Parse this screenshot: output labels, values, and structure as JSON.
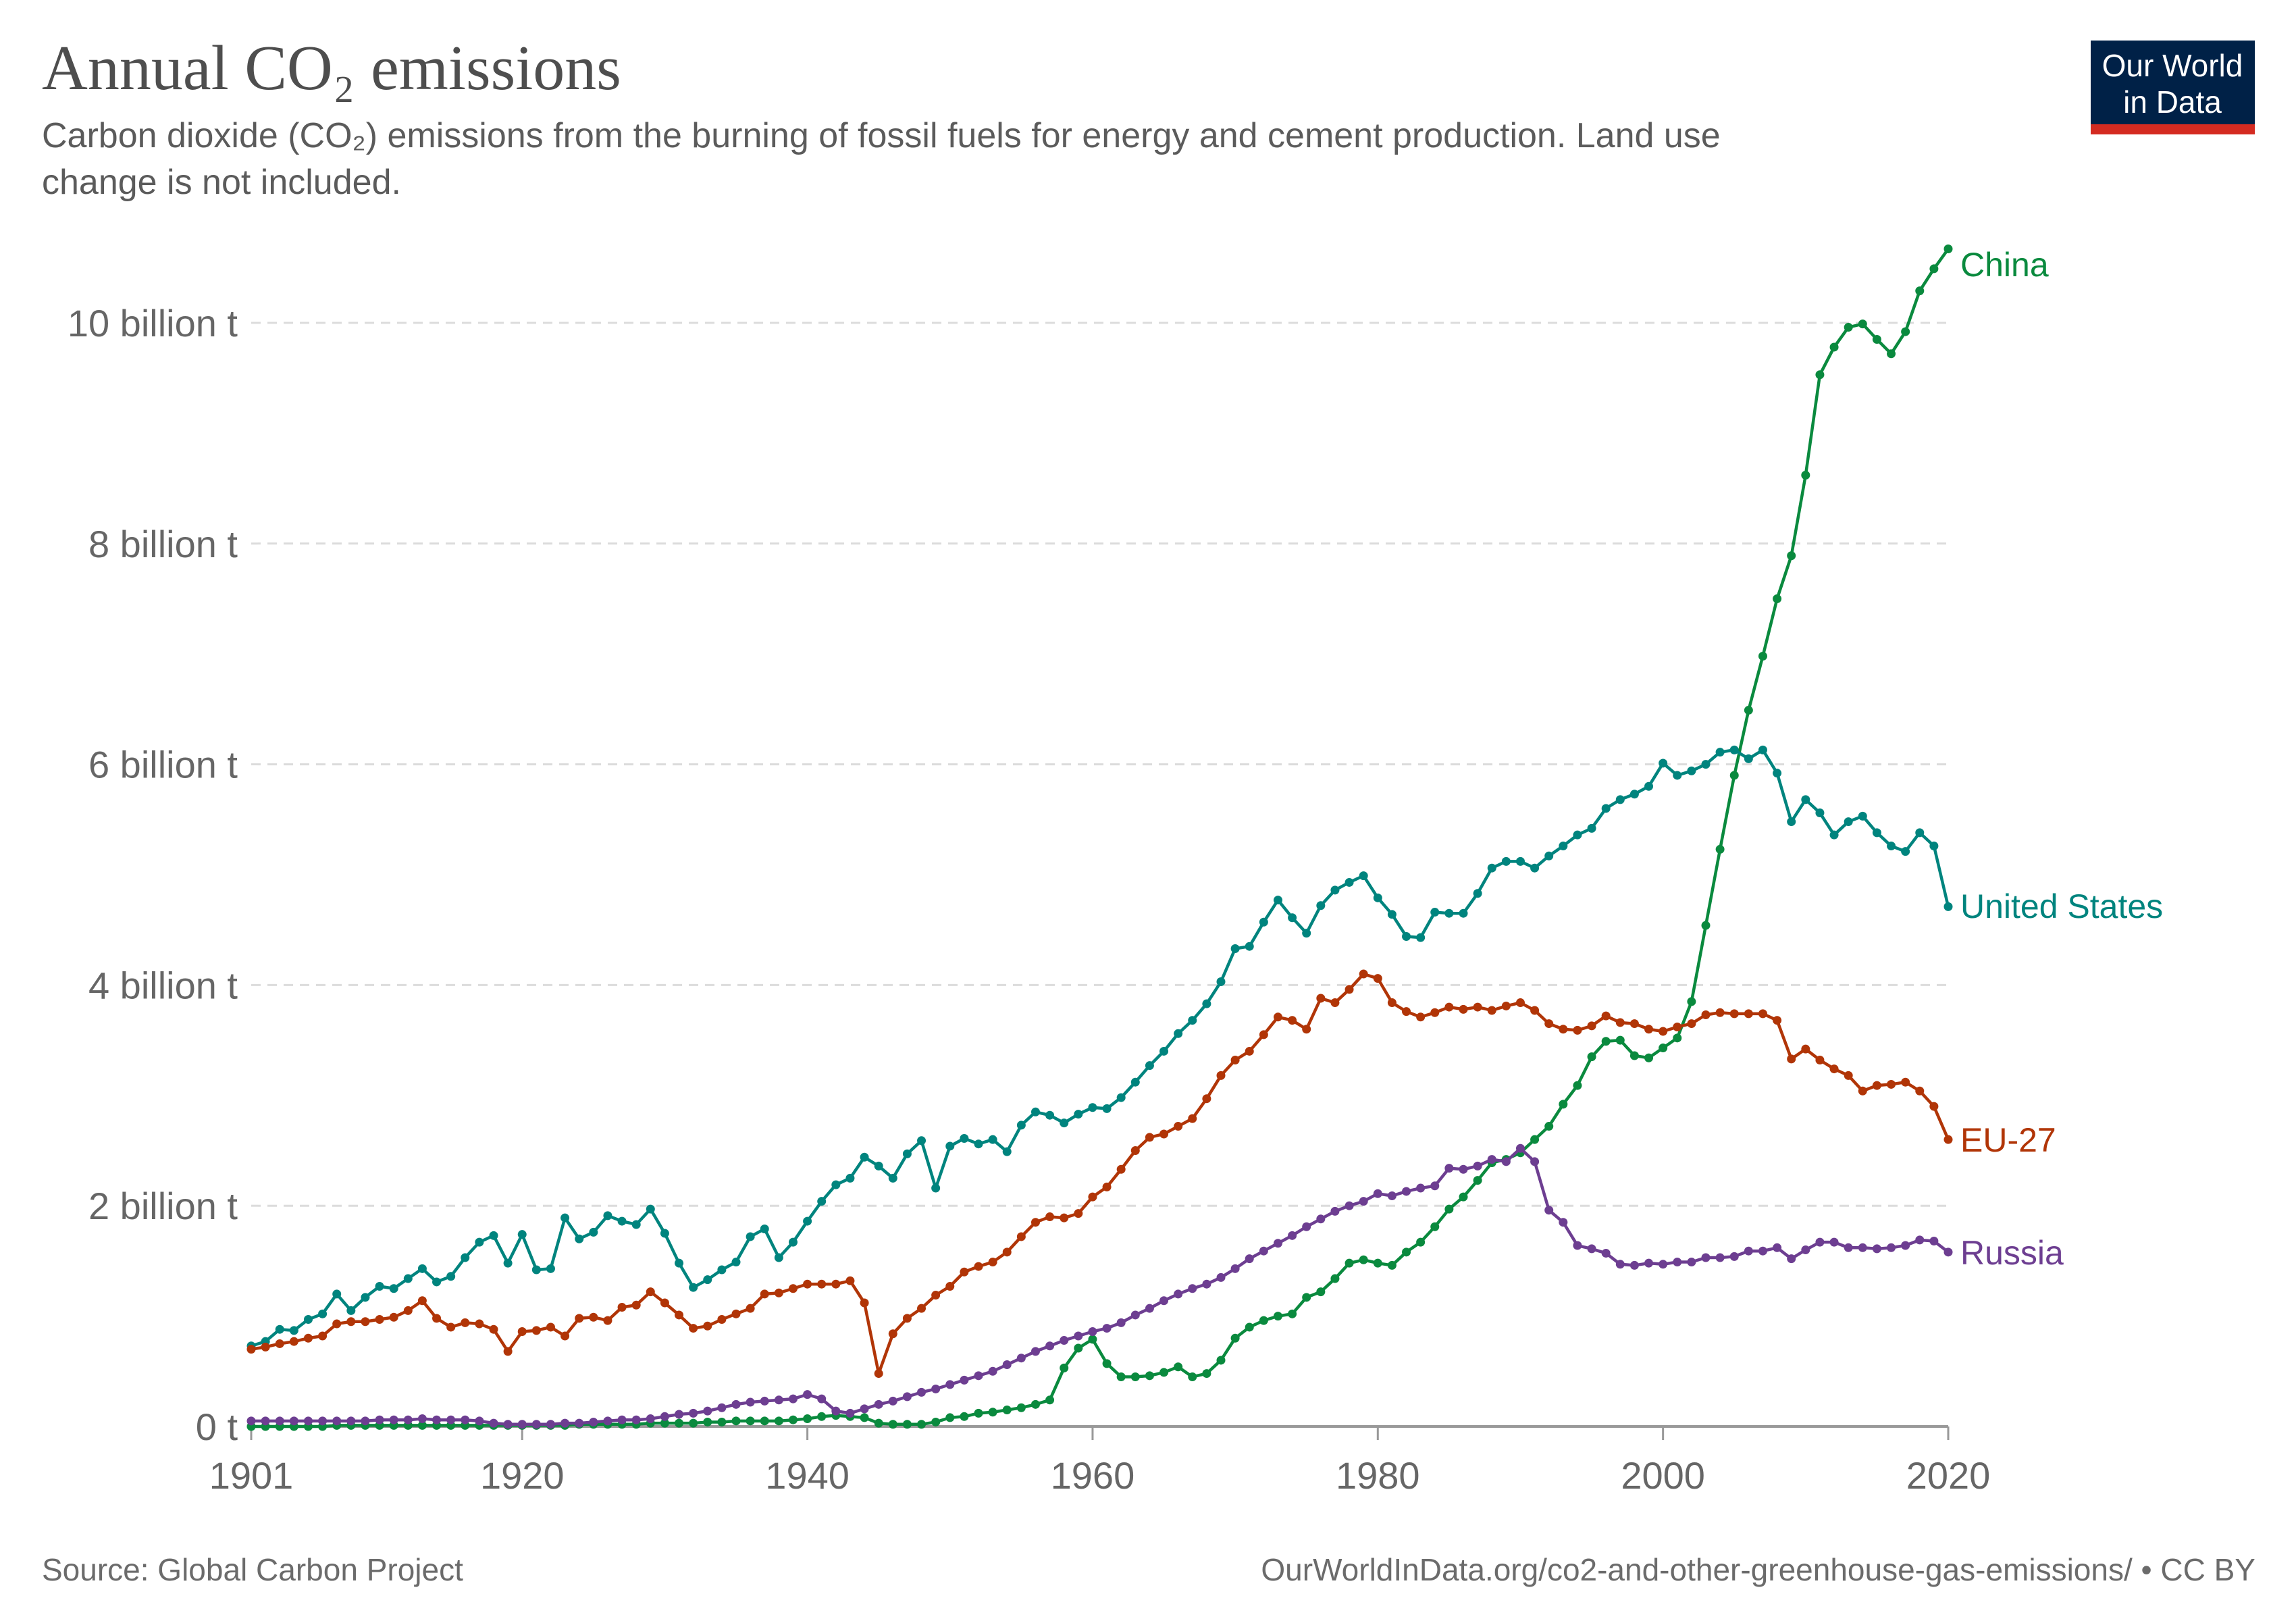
{
  "header": {
    "title": "Annual CO₂ emissions",
    "subtitle_line1": "Carbon dioxide (CO₂) emissions from the burning of fossil fuels for energy and cement production. Land use",
    "subtitle_line2": "change is not included.",
    "logo_line1": "Our World",
    "logo_line2": "in Data",
    "logo_colors": {
      "background": "#002147",
      "band": "#d42b21"
    }
  },
  "footer": {
    "source": "Source: Global Carbon Project",
    "url": "OurWorldInData.org/co2-and-other-greenhouse-gas-emissions/ • CC BY"
  },
  "chart_data": {
    "type": "line",
    "title": "Annual CO₂ emissions",
    "xlabel": "",
    "ylabel": "",
    "x_start": 1901,
    "x_end": 2020,
    "xlim": [
      1901,
      2020
    ],
    "ylim": [
      0,
      10
    ],
    "x_ticks": [
      "1901",
      "1920",
      "1940",
      "1960",
      "1980",
      "2000",
      "2020"
    ],
    "y_ticks": [
      {
        "value": 0,
        "label": "0 t"
      },
      {
        "value": 2,
        "label": "2 billion t"
      },
      {
        "value": 4,
        "label": "4 billion t"
      },
      {
        "value": 6,
        "label": "6 billion t"
      },
      {
        "value": 8,
        "label": "8 billion t"
      },
      {
        "value": 10,
        "label": "10 billion t"
      }
    ],
    "unit": "billion t",
    "grid": "horizontal dashed",
    "legend": "inline labels at line ends (right)",
    "markers": true,
    "series": [
      {
        "name": "China",
        "color": "#0a8a3e",
        "values": [
          0.0,
          0.0,
          0.0,
          0.0,
          0.0,
          0.0,
          0.01,
          0.01,
          0.01,
          0.01,
          0.01,
          0.01,
          0.01,
          0.01,
          0.01,
          0.01,
          0.01,
          0.01,
          0.01,
          0.01,
          0.01,
          0.01,
          0.01,
          0.02,
          0.02,
          0.02,
          0.02,
          0.02,
          0.03,
          0.03,
          0.03,
          0.03,
          0.04,
          0.04,
          0.05,
          0.05,
          0.05,
          0.05,
          0.06,
          0.07,
          0.09,
          0.1,
          0.09,
          0.08,
          0.03,
          0.02,
          0.02,
          0.02,
          0.04,
          0.08,
          0.09,
          0.12,
          0.13,
          0.15,
          0.17,
          0.2,
          0.24,
          0.53,
          0.71,
          0.79,
          0.57,
          0.45,
          0.45,
          0.46,
          0.49,
          0.54,
          0.45,
          0.48,
          0.6,
          0.8,
          0.9,
          0.96,
          1.0,
          1.02,
          1.17,
          1.22,
          1.34,
          1.48,
          1.51,
          1.48,
          1.46,
          1.58,
          1.67,
          1.81,
          1.97,
          2.08,
          2.23,
          2.39,
          2.42,
          2.48,
          2.6,
          2.72,
          2.92,
          3.09,
          3.35,
          3.49,
          3.5,
          3.36,
          3.34,
          3.43,
          3.52,
          3.85,
          4.54,
          5.23,
          5.9,
          6.49,
          6.98,
          7.5,
          7.89,
          8.62,
          9.53,
          9.78,
          9.96,
          9.99,
          9.85,
          9.72,
          9.92,
          10.29,
          10.49,
          10.67
        ]
      },
      {
        "name": "United States",
        "color": "#00847e",
        "values": [
          0.73,
          0.77,
          0.88,
          0.87,
          0.97,
          1.02,
          1.2,
          1.05,
          1.17,
          1.27,
          1.25,
          1.34,
          1.43,
          1.31,
          1.36,
          1.53,
          1.67,
          1.73,
          1.48,
          1.74,
          1.42,
          1.43,
          1.89,
          1.7,
          1.76,
          1.91,
          1.86,
          1.83,
          1.97,
          1.75,
          1.48,
          1.26,
          1.33,
          1.42,
          1.49,
          1.72,
          1.79,
          1.53,
          1.67,
          1.86,
          2.04,
          2.19,
          2.25,
          2.44,
          2.36,
          2.25,
          2.47,
          2.59,
          2.16,
          2.54,
          2.61,
          2.56,
          2.6,
          2.49,
          2.73,
          2.85,
          2.82,
          2.75,
          2.83,
          2.89,
          2.88,
          2.98,
          3.12,
          3.27,
          3.4,
          3.56,
          3.68,
          3.83,
          4.03,
          4.33,
          4.35,
          4.57,
          4.77,
          4.61,
          4.47,
          4.72,
          4.86,
          4.93,
          4.99,
          4.79,
          4.64,
          4.44,
          4.43,
          4.66,
          4.65,
          4.65,
          4.83,
          5.06,
          5.12,
          5.12,
          5.06,
          5.17,
          5.26,
          5.36,
          5.42,
          5.6,
          5.68,
          5.73,
          5.8,
          6.01,
          5.9,
          5.94,
          6.0,
          6.11,
          6.13,
          6.05,
          6.13,
          5.92,
          5.48,
          5.68,
          5.56,
          5.36,
          5.48,
          5.53,
          5.38,
          5.26,
          5.21,
          5.38,
          5.26,
          4.71
        ]
      },
      {
        "name": "EU-27",
        "color": "#b13507",
        "values": [
          0.7,
          0.72,
          0.75,
          0.77,
          0.8,
          0.82,
          0.93,
          0.95,
          0.95,
          0.97,
          0.99,
          1.05,
          1.14,
          0.98,
          0.9,
          0.94,
          0.93,
          0.88,
          0.68,
          0.86,
          0.87,
          0.9,
          0.82,
          0.98,
          0.99,
          0.96,
          1.08,
          1.1,
          1.22,
          1.12,
          1.01,
          0.89,
          0.91,
          0.97,
          1.02,
          1.07,
          1.2,
          1.21,
          1.25,
          1.29,
          1.29,
          1.29,
          1.32,
          1.12,
          0.48,
          0.84,
          0.98,
          1.07,
          1.19,
          1.27,
          1.4,
          1.45,
          1.49,
          1.58,
          1.72,
          1.85,
          1.9,
          1.89,
          1.93,
          2.08,
          2.17,
          2.33,
          2.5,
          2.62,
          2.65,
          2.72,
          2.79,
          2.97,
          3.18,
          3.32,
          3.4,
          3.55,
          3.71,
          3.68,
          3.6,
          3.88,
          3.84,
          3.96,
          4.1,
          4.06,
          3.84,
          3.76,
          3.71,
          3.75,
          3.8,
          3.78,
          3.8,
          3.77,
          3.81,
          3.84,
          3.77,
          3.65,
          3.6,
          3.59,
          3.63,
          3.72,
          3.66,
          3.65,
          3.6,
          3.58,
          3.62,
          3.65,
          3.73,
          3.75,
          3.74,
          3.74,
          3.74,
          3.68,
          3.33,
          3.42,
          3.32,
          3.24,
          3.18,
          3.04,
          3.09,
          3.1,
          3.12,
          3.04,
          2.9,
          2.6
        ]
      },
      {
        "name": "Russia",
        "color": "#6d3e91",
        "values": [
          0.05,
          0.05,
          0.05,
          0.05,
          0.05,
          0.05,
          0.05,
          0.05,
          0.05,
          0.06,
          0.06,
          0.06,
          0.07,
          0.06,
          0.06,
          0.06,
          0.05,
          0.03,
          0.02,
          0.02,
          0.02,
          0.02,
          0.03,
          0.03,
          0.04,
          0.05,
          0.06,
          0.06,
          0.07,
          0.09,
          0.11,
          0.12,
          0.14,
          0.17,
          0.2,
          0.22,
          0.23,
          0.24,
          0.25,
          0.29,
          0.25,
          0.14,
          0.12,
          0.16,
          0.2,
          0.23,
          0.27,
          0.31,
          0.34,
          0.38,
          0.42,
          0.46,
          0.5,
          0.56,
          0.62,
          0.68,
          0.73,
          0.78,
          0.82,
          0.86,
          0.89,
          0.94,
          1.01,
          1.07,
          1.14,
          1.2,
          1.25,
          1.29,
          1.35,
          1.43,
          1.52,
          1.59,
          1.66,
          1.73,
          1.81,
          1.88,
          1.95,
          2.0,
          2.04,
          2.11,
          2.09,
          2.13,
          2.16,
          2.18,
          2.34,
          2.33,
          2.36,
          2.42,
          2.4,
          2.52,
          2.4,
          1.96,
          1.85,
          1.64,
          1.61,
          1.57,
          1.47,
          1.46,
          1.48,
          1.47,
          1.49,
          1.49,
          1.53,
          1.53,
          1.54,
          1.59,
          1.59,
          1.62,
          1.52,
          1.6,
          1.67,
          1.67,
          1.62,
          1.62,
          1.61,
          1.62,
          1.64,
          1.69,
          1.68,
          1.58
        ]
      }
    ]
  }
}
